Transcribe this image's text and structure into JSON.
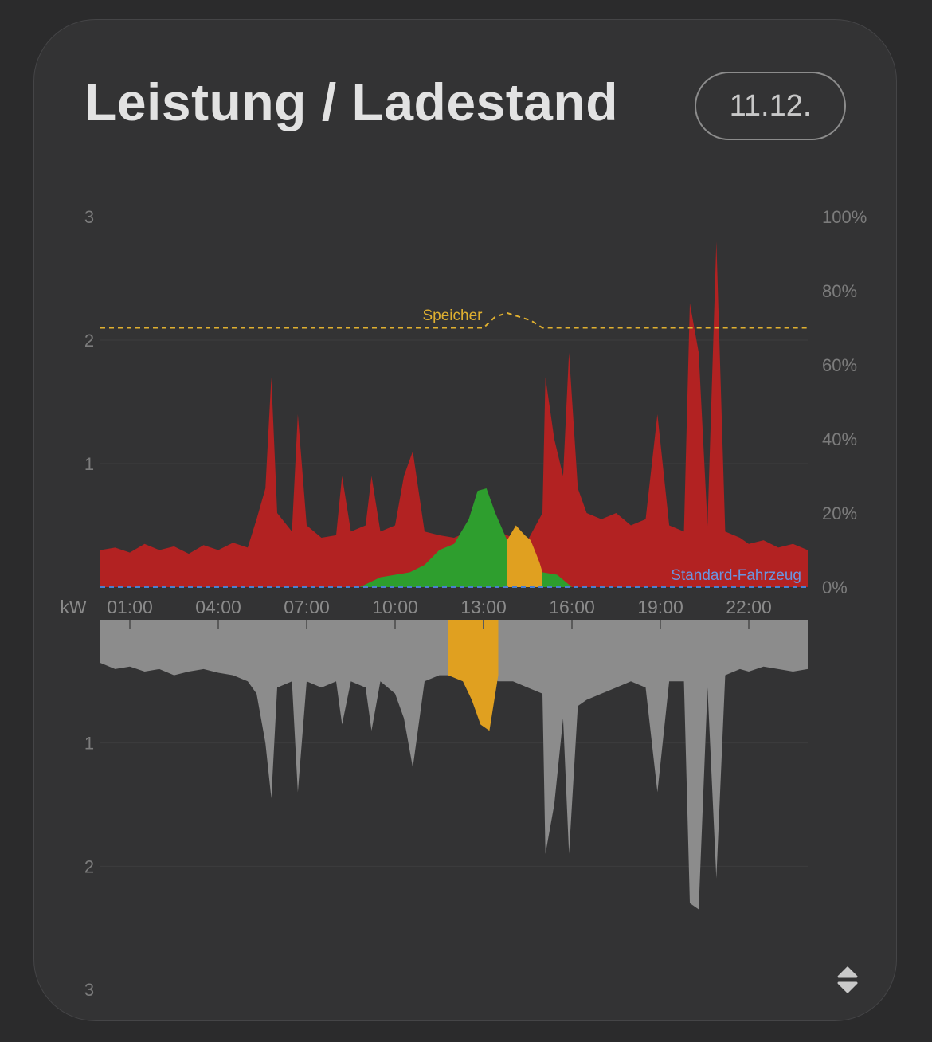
{
  "header": {
    "title": "Leistung / Ladestand",
    "date_label": "11.12."
  },
  "icons": {
    "sort_toggle": "up-down-chevron-icon"
  },
  "chart_data": {
    "type": "area",
    "x_unit_label": "kW",
    "x_ticks": [
      "01:00",
      "04:00",
      "07:00",
      "10:00",
      "13:00",
      "16:00",
      "19:00",
      "22:00"
    ],
    "x_range": [
      0,
      24
    ],
    "y_left_upper_ticks": [
      "3",
      "2",
      "1"
    ],
    "y_left_lower_ticks": [
      "1",
      "2",
      "3"
    ],
    "y_left_range_upper_kw": [
      0,
      3
    ],
    "y_left_range_lower_kw": [
      0,
      3
    ],
    "y_right_ticks": [
      "100%",
      "80%",
      "60%",
      "40%",
      "20%",
      "0%"
    ],
    "y_right_range_percent": [
      0,
      100
    ],
    "colors": {
      "grid_consumption": "#b22222",
      "pv": "#2e9e2e",
      "battery": "#e0a020",
      "house_usage": "#8c8c8c",
      "vehicle_line": "#4a7fd0",
      "storage_soc": "#e0b030"
    },
    "annotations": {
      "storage_label": "Speicher",
      "vehicle_label": "Standard-Fahrzeug"
    },
    "series_upper": [
      {
        "key": "grid_consumption",
        "points": [
          [
            0,
            0.3
          ],
          [
            0.5,
            0.32
          ],
          [
            1,
            0.28
          ],
          [
            1.5,
            0.35
          ],
          [
            2,
            0.3
          ],
          [
            2.5,
            0.33
          ],
          [
            3,
            0.27
          ],
          [
            3.5,
            0.34
          ],
          [
            4,
            0.3
          ],
          [
            4.5,
            0.36
          ],
          [
            5,
            0.32
          ],
          [
            5.3,
            0.55
          ],
          [
            5.6,
            0.8
          ],
          [
            5.8,
            1.7
          ],
          [
            6,
            0.6
          ],
          [
            6.5,
            0.45
          ],
          [
            6.7,
            1.4
          ],
          [
            7,
            0.5
          ],
          [
            7.5,
            0.4
          ],
          [
            8,
            0.42
          ],
          [
            8.2,
            0.9
          ],
          [
            8.5,
            0.45
          ],
          [
            9,
            0.5
          ],
          [
            9.2,
            0.9
          ],
          [
            9.5,
            0.45
          ],
          [
            10,
            0.5
          ],
          [
            10.3,
            0.9
          ],
          [
            10.6,
            1.1
          ],
          [
            11,
            0.45
          ],
          [
            11.5,
            0.42
          ],
          [
            12,
            0.4
          ],
          [
            12.5,
            0.45
          ],
          [
            13,
            0.5
          ],
          [
            13.5,
            0.45
          ],
          [
            14,
            0.4
          ],
          [
            14.5,
            0.38
          ],
          [
            15,
            0.6
          ],
          [
            15.1,
            1.7
          ],
          [
            15.4,
            1.2
          ],
          [
            15.7,
            0.9
          ],
          [
            15.9,
            1.9
          ],
          [
            16.2,
            0.8
          ],
          [
            16.5,
            0.6
          ],
          [
            17,
            0.55
          ],
          [
            17.5,
            0.6
          ],
          [
            18,
            0.5
          ],
          [
            18.5,
            0.55
          ],
          [
            18.9,
            1.4
          ],
          [
            19.3,
            0.5
          ],
          [
            19.8,
            0.45
          ],
          [
            20,
            2.3
          ],
          [
            20.3,
            1.9
          ],
          [
            20.6,
            0.5
          ],
          [
            20.9,
            2.8
          ],
          [
            21.2,
            0.45
          ],
          [
            21.7,
            0.4
          ],
          [
            22,
            0.35
          ],
          [
            22.5,
            0.38
          ],
          [
            23,
            0.32
          ],
          [
            23.5,
            0.35
          ],
          [
            24,
            0.3
          ]
        ]
      },
      {
        "key": "pv",
        "points": [
          [
            8.8,
            0
          ],
          [
            9.5,
            0.08
          ],
          [
            10,
            0.1
          ],
          [
            10.5,
            0.12
          ],
          [
            11,
            0.18
          ],
          [
            11.5,
            0.3
          ],
          [
            12,
            0.35
          ],
          [
            12.5,
            0.55
          ],
          [
            12.8,
            0.78
          ],
          [
            13.1,
            0.8
          ],
          [
            13.4,
            0.6
          ],
          [
            13.8,
            0.38
          ],
          [
            14.2,
            0.28
          ],
          [
            14.6,
            0.2
          ],
          [
            15,
            0.12
          ],
          [
            15.5,
            0.1
          ],
          [
            16,
            0
          ]
        ]
      },
      {
        "key": "battery",
        "points": [
          [
            13.8,
            0.38
          ],
          [
            14.1,
            0.5
          ],
          [
            14.4,
            0.42
          ],
          [
            14.6,
            0.38
          ],
          [
            14.9,
            0.2
          ],
          [
            15,
            0.12
          ]
        ]
      }
    ],
    "series_lower": [
      {
        "key": "house_usage",
        "points": [
          [
            0,
            0.35
          ],
          [
            0.5,
            0.4
          ],
          [
            1,
            0.38
          ],
          [
            1.5,
            0.42
          ],
          [
            2,
            0.4
          ],
          [
            2.5,
            0.45
          ],
          [
            3,
            0.42
          ],
          [
            3.5,
            0.4
          ],
          [
            4,
            0.43
          ],
          [
            4.5,
            0.45
          ],
          [
            5,
            0.5
          ],
          [
            5.3,
            0.6
          ],
          [
            5.6,
            1.0
          ],
          [
            5.8,
            1.45
          ],
          [
            6,
            0.55
          ],
          [
            6.5,
            0.5
          ],
          [
            6.7,
            1.4
          ],
          [
            7,
            0.5
          ],
          [
            7.5,
            0.55
          ],
          [
            8,
            0.5
          ],
          [
            8.2,
            0.85
          ],
          [
            8.5,
            0.5
          ],
          [
            9,
            0.55
          ],
          [
            9.2,
            0.9
          ],
          [
            9.5,
            0.5
          ],
          [
            10,
            0.6
          ],
          [
            10.3,
            0.8
          ],
          [
            10.6,
            1.2
          ],
          [
            11,
            0.5
          ],
          [
            11.5,
            0.45
          ],
          [
            12,
            0.45
          ],
          [
            12.5,
            0.5
          ],
          [
            13,
            0.45
          ],
          [
            13.5,
            0.5
          ],
          [
            14,
            0.5
          ],
          [
            14.5,
            0.55
          ],
          [
            15,
            0.6
          ],
          [
            15.1,
            1.9
          ],
          [
            15.4,
            1.5
          ],
          [
            15.7,
            0.8
          ],
          [
            15.9,
            1.9
          ],
          [
            16.2,
            0.7
          ],
          [
            16.5,
            0.65
          ],
          [
            17,
            0.6
          ],
          [
            17.5,
            0.55
          ],
          [
            18,
            0.5
          ],
          [
            18.5,
            0.55
          ],
          [
            18.9,
            1.4
          ],
          [
            19.3,
            0.5
          ],
          [
            19.8,
            0.5
          ],
          [
            20,
            2.3
          ],
          [
            20.3,
            2.35
          ],
          [
            20.6,
            0.55
          ],
          [
            20.9,
            2.1
          ],
          [
            21.2,
            0.45
          ],
          [
            21.7,
            0.4
          ],
          [
            22,
            0.42
          ],
          [
            22.5,
            0.38
          ],
          [
            23,
            0.4
          ],
          [
            23.5,
            0.42
          ],
          [
            24,
            0.4
          ]
        ]
      },
      {
        "key": "battery",
        "points": [
          [
            11.8,
            0.45
          ],
          [
            12.3,
            0.5
          ],
          [
            12.6,
            0.65
          ],
          [
            12.9,
            0.85
          ],
          [
            13.2,
            0.9
          ],
          [
            13.4,
            0.6
          ],
          [
            13.5,
            0.45
          ]
        ]
      }
    ],
    "storage_soc_percent": [
      [
        0,
        70
      ],
      [
        13.0,
        70
      ],
      [
        13.4,
        73
      ],
      [
        13.8,
        74
      ],
      [
        14.2,
        73
      ],
      [
        14.6,
        72
      ],
      [
        15.0,
        70
      ],
      [
        24,
        70
      ]
    ],
    "vehicle_soc_percent": [
      [
        0,
        0
      ],
      [
        24,
        0
      ]
    ]
  }
}
